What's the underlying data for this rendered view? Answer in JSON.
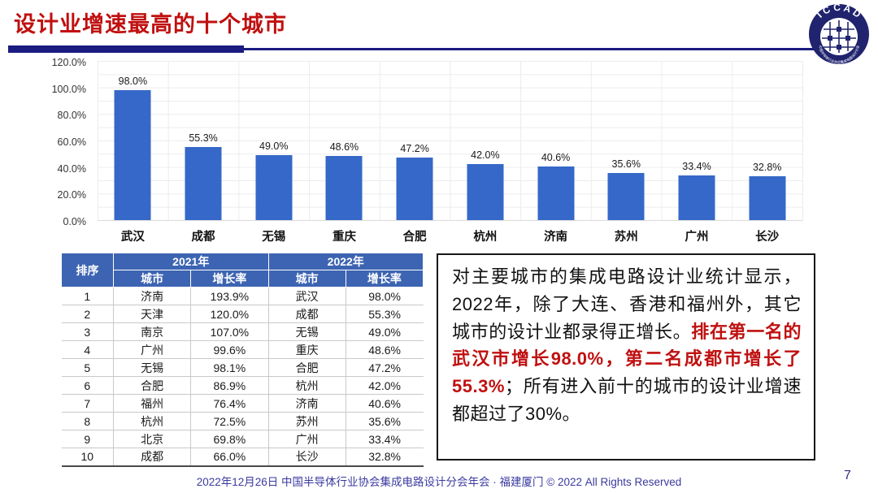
{
  "theme": {
    "red": "#C01010",
    "navy": "#1B1B80",
    "bar_blue": "#3568C8",
    "table_header_bg": "#3D64B2",
    "grid_color": "#ECECEC",
    "footer_color": "#3A3AA0"
  },
  "header": {
    "title": "设计业增速最高的十个城市",
    "logo": {
      "ring_text_top": "I C C A D",
      "ring_text_bottom": "中国半导体行业协会集成电路设计分会"
    }
  },
  "chart_data": {
    "type": "bar",
    "title": "",
    "xlabel": "",
    "ylabel": "",
    "categories": [
      "武汉",
      "成都",
      "无锡",
      "重庆",
      "合肥",
      "杭州",
      "济南",
      "苏州",
      "广州",
      "长沙"
    ],
    "values": [
      98.0,
      55.3,
      49.0,
      48.6,
      47.2,
      42.0,
      40.6,
      35.6,
      33.4,
      32.8
    ],
    "labels": [
      "98.0%",
      "55.3%",
      "49.0%",
      "48.6%",
      "47.2%",
      "42.0%",
      "40.6%",
      "35.6%",
      "33.4%",
      "32.8%"
    ],
    "ylim": [
      0,
      120
    ],
    "yticks": [
      "0.0%",
      "20.0%",
      "40.0%",
      "60.0%",
      "80.0%",
      "100.0%",
      "120.0%"
    ],
    "grid": true,
    "legend": false
  },
  "table": {
    "header": {
      "rank": "排序",
      "y2021": "2021年",
      "y2022": "2022年",
      "city": "城市",
      "growth": "增长率"
    },
    "rows": [
      {
        "rank": "1",
        "city2021": "济南",
        "growth2021": "193.9%",
        "city2022": "武汉",
        "growth2022": "98.0%"
      },
      {
        "rank": "2",
        "city2021": "天津",
        "growth2021": "120.0%",
        "city2022": "成都",
        "growth2022": "55.3%"
      },
      {
        "rank": "3",
        "city2021": "南京",
        "growth2021": "107.0%",
        "city2022": "无锡",
        "growth2022": "49.0%"
      },
      {
        "rank": "4",
        "city2021": "广州",
        "growth2021": "99.6%",
        "city2022": "重庆",
        "growth2022": "48.6%"
      },
      {
        "rank": "5",
        "city2021": "无锡",
        "growth2021": "98.1%",
        "city2022": "合肥",
        "growth2022": "47.2%"
      },
      {
        "rank": "6",
        "city2021": "合肥",
        "growth2021": "86.9%",
        "city2022": "杭州",
        "growth2022": "42.0%"
      },
      {
        "rank": "7",
        "city2021": "福州",
        "growth2021": "76.4%",
        "city2022": "济南",
        "growth2022": "40.6%"
      },
      {
        "rank": "8",
        "city2021": "杭州",
        "growth2021": "72.5%",
        "city2022": "苏州",
        "growth2022": "35.6%"
      },
      {
        "rank": "9",
        "city2021": "北京",
        "growth2021": "69.8%",
        "city2022": "广州",
        "growth2022": "33.4%"
      },
      {
        "rank": "10",
        "city2021": "成都",
        "growth2021": "66.0%",
        "city2022": "长沙",
        "growth2022": "32.8%"
      }
    ]
  },
  "commentary": {
    "segments": [
      {
        "text": "对主要城市的集成电路设计业统计显示，2022年，除了大连、香港和福州外，其它城市的设计业都录得正增长。",
        "emphasis": false
      },
      {
        "text": "排在第一名的武汉市增长98.0%，第二名成都市增长了55.3%",
        "emphasis": true
      },
      {
        "text": "；所有进入前十的城市的设计业增速都超过了30%。",
        "emphasis": false
      }
    ]
  },
  "footer": {
    "text": "2022年12月26日 中国半导体行业协会集成电路设计分会年会 · 福建厦门 © 2022 All Rights Reserved",
    "page_number": "7"
  }
}
